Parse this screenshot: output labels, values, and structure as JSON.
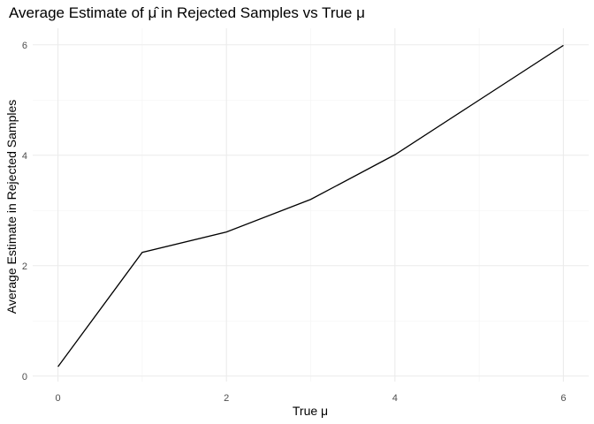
{
  "chart_data": {
    "type": "line",
    "title": "Average Estimate of μ̂ in Rejected Samples vs True μ",
    "xlabel": "True μ",
    "ylabel": "Average Estimate in Rejected Samples",
    "xlim": [
      -0.3,
      6.3
    ],
    "ylim": [
      -0.1,
      6.3
    ],
    "x_ticks": [
      0,
      2,
      4,
      6
    ],
    "y_ticks": [
      0,
      2,
      4,
      6
    ],
    "x_minor": [
      1,
      3,
      5
    ],
    "y_minor": [
      1,
      3,
      5
    ],
    "grid": true,
    "line_color": "#000000",
    "x": [
      0,
      1,
      2,
      3,
      4,
      5,
      6
    ],
    "y": [
      0.17,
      2.24,
      2.61,
      3.2,
      4.01,
      5.0,
      5.99
    ]
  }
}
